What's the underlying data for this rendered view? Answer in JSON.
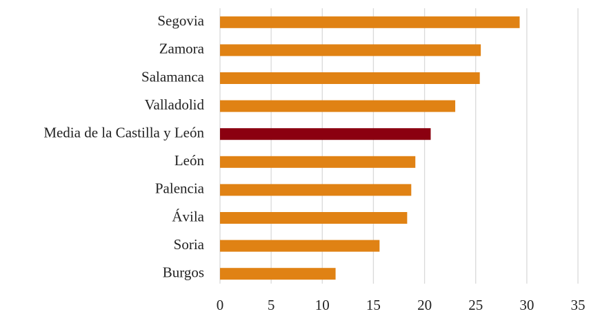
{
  "chart_data": {
    "type": "barh",
    "categories": [
      "Segovia",
      "Zamora",
      "Salamanca",
      "Valladolid",
      "Media de la Castilla y León",
      "León",
      "Palencia",
      "Ávila",
      "Soria",
      "Burgos"
    ],
    "values": [
      29.3,
      25.5,
      25.4,
      23.0,
      20.6,
      19.1,
      18.7,
      18.3,
      15.6,
      11.3
    ],
    "colors": [
      "#e08214",
      "#e08214",
      "#e08214",
      "#e08214",
      "#8b0010",
      "#e08214",
      "#e08214",
      "#e08214",
      "#e08214",
      "#e08214"
    ],
    "xlim": [
      0,
      35
    ],
    "xticks": [
      0,
      5,
      10,
      15,
      20,
      25,
      30,
      35
    ],
    "grid": true
  }
}
